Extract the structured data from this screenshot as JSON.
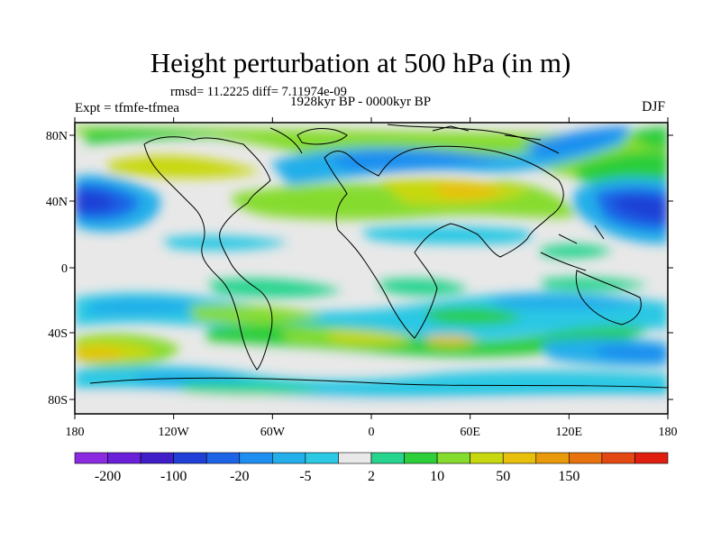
{
  "figure": {
    "title": "Height perturbation at 500 hPa (in m)",
    "stats": "rmsd= 11.2225 diff= 7.11974e-09",
    "expt": "Expt = tfmfe-tfmea",
    "period": "1928kyr BP - 0000kyr BP",
    "season": "DJF"
  },
  "axes": {
    "lat_labels": [
      "80N",
      "40N",
      "0",
      "40S",
      "80S"
    ],
    "lon_labels": [
      "180",
      "120W",
      "60W",
      "0",
      "60E",
      "120E",
      "180"
    ]
  },
  "colorbar": {
    "colors": [
      "#8a2be2",
      "#6a1fd8",
      "#3f1ec8",
      "#1f3fd6",
      "#1e64e6",
      "#1e8ef0",
      "#24aeea",
      "#2cc8e4",
      "#e8e8e8",
      "#27d48e",
      "#2cce3a",
      "#86dc2e",
      "#c8d810",
      "#e8c00c",
      "#e89a0c",
      "#e8720e",
      "#e44812",
      "#e01e10"
    ],
    "labels": [
      "-200",
      "-100",
      "-20",
      "-5",
      "2",
      "10",
      "50",
      "150"
    ]
  }
}
